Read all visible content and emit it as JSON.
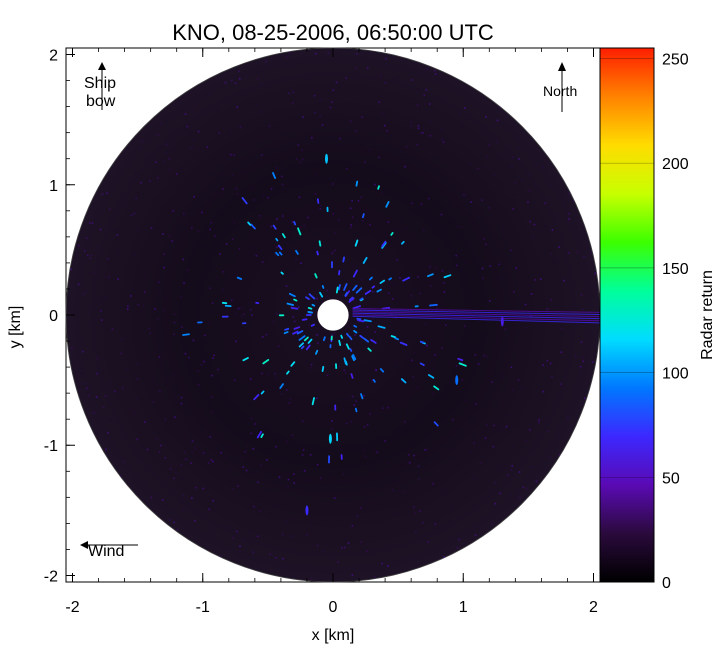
{
  "chart_data": {
    "type": "heatmap",
    "title": "KNO, 08-25-2006, 06:50:00 UTC",
    "xlabel": "x [km]",
    "ylabel": "y [km]",
    "xlim": [
      -2.05,
      2.05
    ],
    "ylim": [
      -2.05,
      2.05
    ],
    "x_ticks": [
      -2,
      -1,
      0,
      1,
      2
    ],
    "y_ticks": [
      -2,
      -1,
      0,
      1,
      2
    ],
    "x_tick_labels": [
      "-2",
      "-1",
      "0",
      "1",
      "2"
    ],
    "y_tick_labels": [
      "-2",
      "-1",
      "0",
      "1",
      "2"
    ],
    "radar_max_range_km": 2.05,
    "blind_zone_radius_km": 0.12,
    "colorbar": {
      "label": "Radar return",
      "range": [
        0,
        255
      ],
      "ticks": [
        0,
        50,
        100,
        150,
        200,
        250
      ],
      "tick_labels": [
        "0",
        "50",
        "100",
        "150",
        "200",
        "250"
      ],
      "colors": [
        "#000000",
        "#2a0a3c",
        "#5a0ab4",
        "#3c28ff",
        "#0078ff",
        "#00dcff",
        "#00ff9a",
        "#3cff00",
        "#c8ff00",
        "#ffdc00",
        "#ff8200",
        "#ff1e00"
      ]
    },
    "annotations": [
      {
        "text_lines": [
          "Ship",
          "bow"
        ],
        "arrow": "up",
        "corner": "top-left"
      },
      {
        "text_lines": [
          "North"
        ],
        "arrow": "up",
        "corner": "top-right"
      },
      {
        "text_lines": [
          "Wind"
        ],
        "arrow": "left",
        "corner": "bottom-left"
      }
    ],
    "echo_features": [
      {
        "x": 0.0,
        "y": 0.0,
        "r": 0.12,
        "value": 255,
        "note": "blind zone"
      },
      {
        "x": 1.3,
        "y": -0.05,
        "value": 60,
        "note": "ship wake streak"
      },
      {
        "x": -0.05,
        "y": 1.2,
        "value": 110
      },
      {
        "x": -0.02,
        "y": -0.95,
        "value": 115
      },
      {
        "x": 0.95,
        "y": -0.5,
        "value": 90
      },
      {
        "x": -0.2,
        "y": -1.5,
        "value": 70
      }
    ],
    "grid": false,
    "legend": "colorbar-right"
  }
}
